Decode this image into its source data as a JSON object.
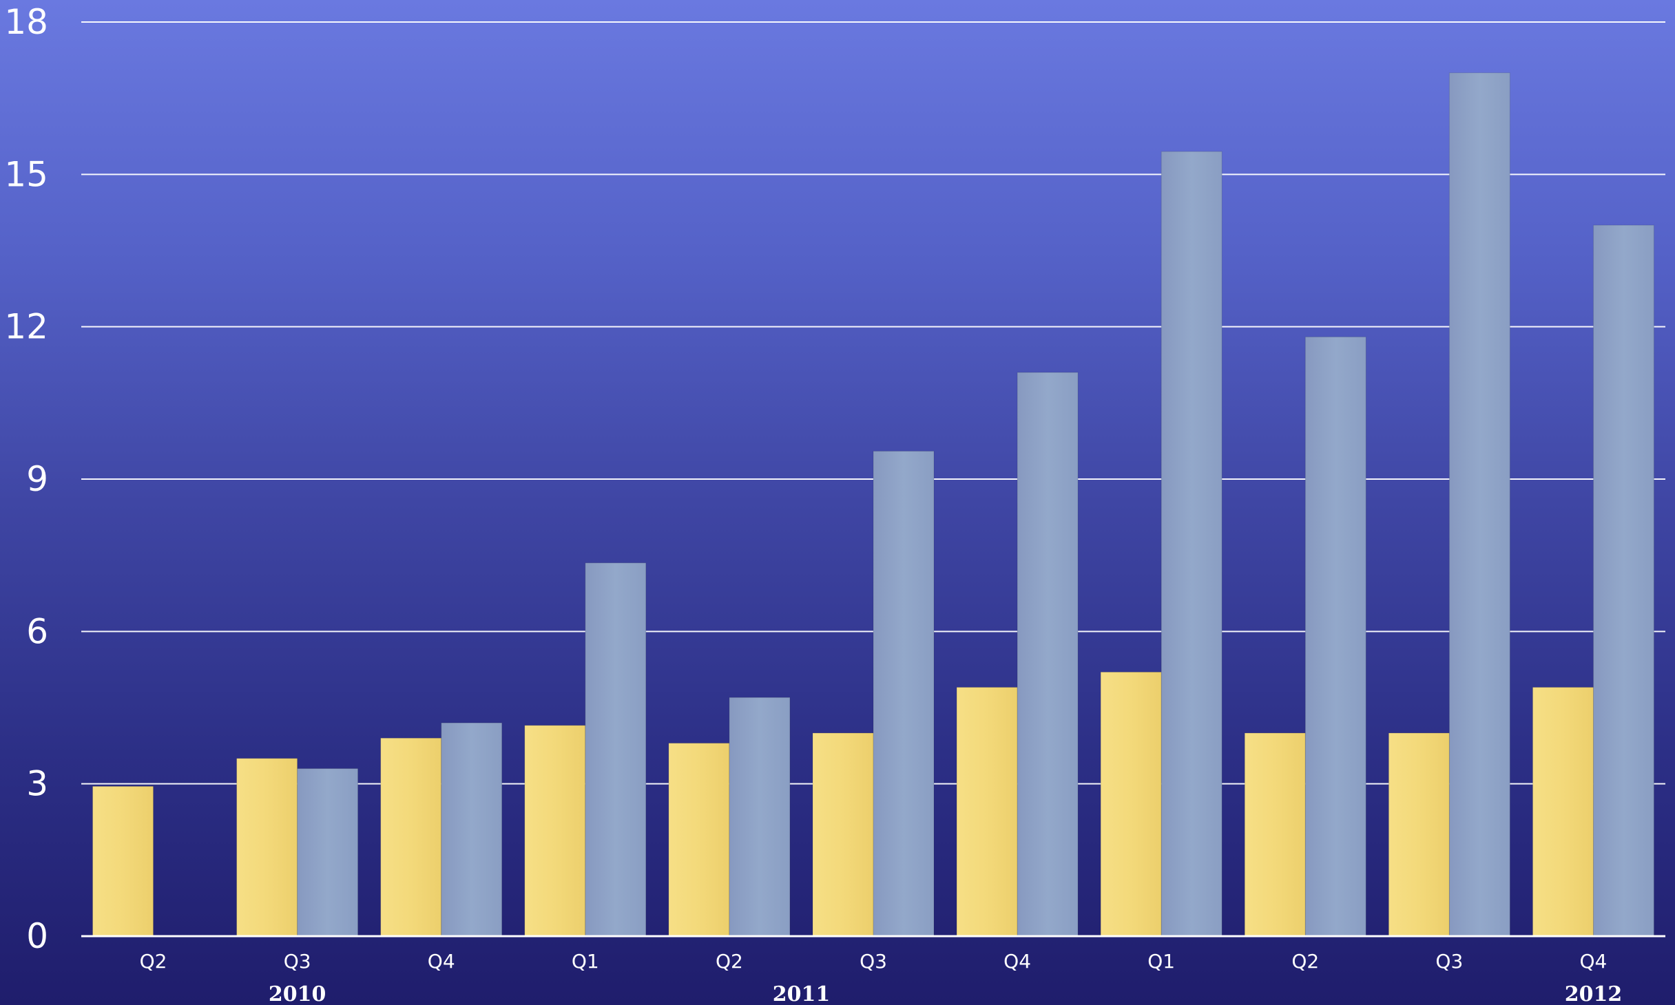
{
  "chart_data": {
    "type": "bar",
    "title": "",
    "xlabel": "",
    "ylabel": "",
    "ylim": [
      0,
      18
    ],
    "yticks": [
      "0",
      "3",
      "6",
      "9",
      "12",
      "15",
      "18"
    ],
    "grid": true,
    "legend": "none",
    "categories": [
      "Q2",
      "Q3",
      "Q4",
      "Q1",
      "Q2",
      "Q3",
      "Q4",
      "Q1",
      "Q2",
      "Q3",
      "Q4"
    ],
    "groups": [
      {
        "label": "2010",
        "start": 0,
        "end": 2
      },
      {
        "label": "2011",
        "start": 3,
        "end": 6
      },
      {
        "label": "2012",
        "start": 7,
        "end": 10
      }
    ],
    "series": [
      {
        "color": "#f3da7c",
        "values": [
          2.95,
          3.5,
          3.9,
          4.15,
          3.8,
          4.0,
          4.9,
          5.2,
          4.0,
          4.0,
          4.9
        ]
      },
      {
        "color": "#8fa3c6",
        "values": [
          null,
          3.3,
          4.2,
          7.35,
          4.7,
          9.55,
          11.1,
          15.45,
          11.8,
          17.0,
          14.0
        ]
      }
    ],
    "colors": {
      "gridline": "#ffffff",
      "text": "#ffffff"
    }
  }
}
